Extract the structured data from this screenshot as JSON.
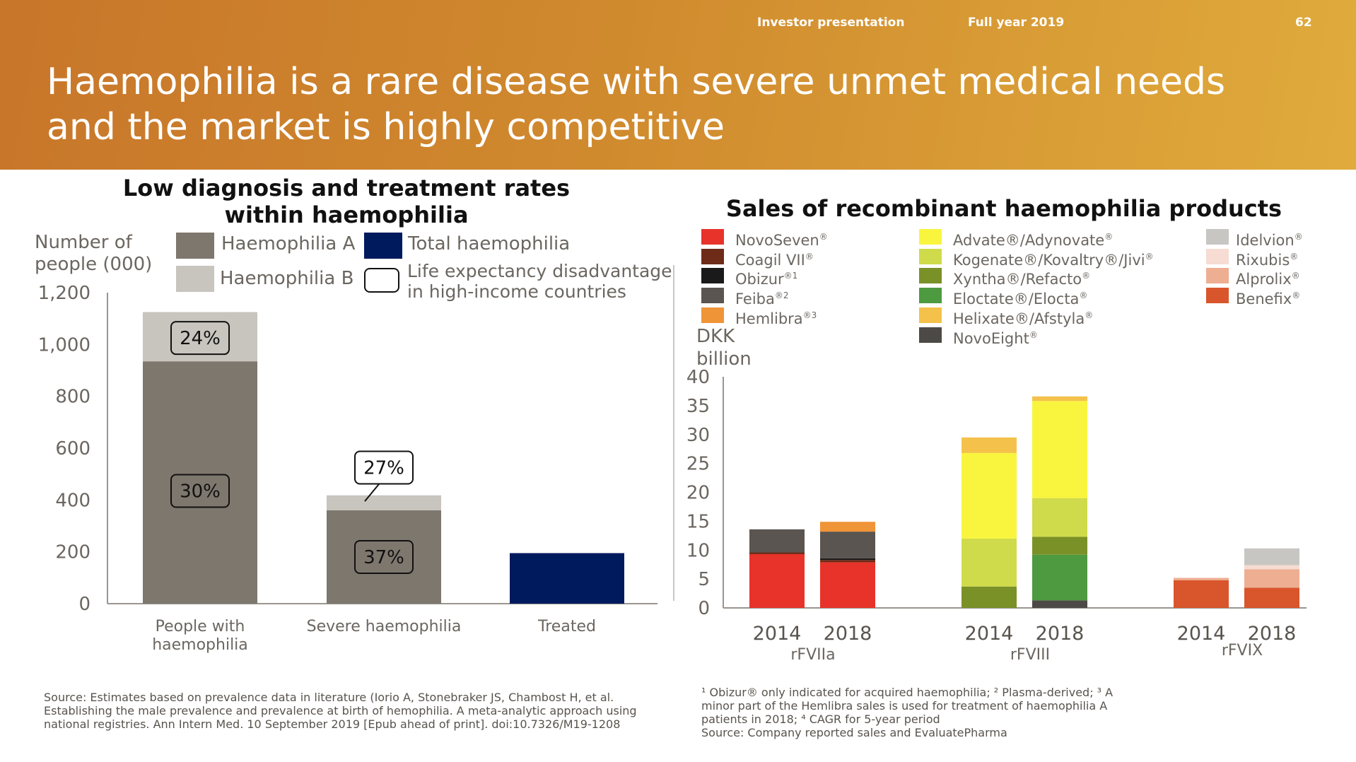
{
  "header": {
    "section": "Investor presentation",
    "period": "Full year 2019",
    "page": "62",
    "title_line1": "Haemophilia is a rare disease with severe unmet medical needs",
    "title_line2": "and the market is highly competitive"
  },
  "colors": {
    "haemophilia_a": "#7e776e",
    "haemophilia_b": "#c8c4be",
    "total_haemophilia": "#001a5e",
    "banner_start": "#c8762a",
    "banner_end": "#e0ab3c"
  },
  "left": {
    "title_line1": "Low diagnosis and treatment rates",
    "title_line2": "within haemophilia",
    "ylabel_line1": "Number of",
    "ylabel_line2": "people (000)",
    "legend": {
      "haemophilia_a": "Haemophilia A",
      "haemophilia_b": "Haemophilia B",
      "total": "Total haemophilia",
      "life_line1": "Life expectancy disadvantage",
      "life_line2": "in high-income countries"
    },
    "source_line1": "Source: Estimates based on prevalence data in literature (Iorio A, Stonebraker JS, Chambost H, et al.",
    "source_line2": "Establishing the male prevalence and prevalence at birth of hemophilia. A meta-analytic approach using",
    "source_line3": "national registries. Ann Intern Med. 10 September 2019 [Epub ahead of print]. doi:10.7326/M19-1208"
  },
  "right": {
    "title": "Sales of recombinant haemophilia products",
    "ylabel_line1": "DKK",
    "ylabel_line2": "billion",
    "legend_col1": [
      {
        "name": "NovoSeven",
        "sup": "®",
        "color": "#e8332a"
      },
      {
        "name": "Coagil VII",
        "sup": "®",
        "color": "#6e2b18"
      },
      {
        "name": "Obizur",
        "sup": "®1",
        "color": "#1a1a1a"
      },
      {
        "name": "Feiba",
        "sup": "®2",
        "color": "#5a5550"
      },
      {
        "name": "Hemlibra",
        "sup": "®3",
        "color": "#f09438"
      }
    ],
    "legend_col2": [
      {
        "name": "Advate®/Adynovate",
        "sup": "®",
        "color": "#f9f53e"
      },
      {
        "name": "Kogenate®/Kovaltry®/Jivi",
        "sup": "®",
        "color": "#cfdb4a"
      },
      {
        "name": "Xyntha®/Refacto",
        "sup": "®",
        "color": "#7a9128"
      },
      {
        "name": "Eloctate®/Elocta",
        "sup": "®",
        "color": "#4e9a40"
      },
      {
        "name": "Helixate®/Afstyla",
        "sup": "®",
        "color": "#f4c24a"
      },
      {
        "name": "NovoEight",
        "sup": "®",
        "color": "#4d4946"
      }
    ],
    "legend_col3": [
      {
        "name": "Idelvion",
        "sup": "®",
        "color": "#c8c6c3"
      },
      {
        "name": "Rixubis",
        "sup": "®",
        "color": "#f6dcd2"
      },
      {
        "name": "Alprolix",
        "sup": "®",
        "color": "#eeae92"
      },
      {
        "name": "Benefix",
        "sup": "®",
        "color": "#d9552b"
      }
    ],
    "footnote_line1": "¹ Obizur® only indicated for acquired haemophilia; ² Plasma-derived; ³ A",
    "footnote_line2": "minor part of the Hemlibra sales is used for treatment of haemophilia A",
    "footnote_line3": "patients in 2018; ⁴ CAGR for 5-year period",
    "footnote_line4": "Source: Company reported sales and EvaluatePharma"
  },
  "chart_data": [
    {
      "type": "bar",
      "title": "Low diagnosis and treatment rates within haemophilia",
      "ylabel": "Number of people (000)",
      "ylim": [
        0,
        1200
      ],
      "yticks": [
        "0",
        "200",
        "400",
        "600",
        "800",
        "1,000",
        "1,200"
      ],
      "categories": [
        "People with haemophilia",
        "Severe haemophilia",
        "Treated"
      ],
      "category_lines": [
        [
          "People with",
          "haemophilia"
        ],
        [
          "Severe haemophilia"
        ],
        [
          "Treated"
        ]
      ],
      "series": [
        {
          "name": "Haemophilia A",
          "values": [
            935,
            360,
            0
          ]
        },
        {
          "name": "Haemophilia B",
          "values": [
            190,
            58,
            0
          ]
        },
        {
          "name": "Total haemophilia",
          "values": [
            0,
            0,
            195
          ]
        }
      ],
      "annotations": [
        {
          "category": 0,
          "label": "24%",
          "at": 1025
        },
        {
          "category": 0,
          "label": "30%",
          "at": 435
        },
        {
          "category": 1,
          "label": "27%",
          "at": 525,
          "pointer_to": 395
        },
        {
          "category": 1,
          "label": "37%",
          "at": 180
        }
      ]
    },
    {
      "type": "bar",
      "title": "Sales of recombinant haemophilia products",
      "ylabel": "DKK billion",
      "ylim": [
        0,
        40
      ],
      "yticks": [
        "0",
        "5",
        "10",
        "15",
        "20",
        "25",
        "30",
        "35",
        "40"
      ],
      "groups": [
        {
          "name": "rFVIIa",
          "bars": [
            {
              "year": "2014",
              "stack": [
                {
                  "name": "NovoSeven",
                  "value": 9.3
                },
                {
                  "name": "Coagil VII",
                  "value": 0.3
                },
                {
                  "name": "Feiba",
                  "value": 4.0
                }
              ]
            },
            {
              "year": "2018",
              "stack": [
                {
                  "name": "NovoSeven",
                  "value": 7.9
                },
                {
                  "name": "Coagil VII",
                  "value": 0.4
                },
                {
                  "name": "Obizur",
                  "value": 0.3
                },
                {
                  "name": "Feiba",
                  "value": 4.6
                },
                {
                  "name": "Hemlibra",
                  "value": 1.7
                }
              ]
            }
          ]
        },
        {
          "name": "rFVIII",
          "bars": [
            {
              "year": "2014",
              "stack": [
                {
                  "name": "Xyntha®/Refacto",
                  "value": 3.7
                },
                {
                  "name": "Kogenate®/Kovaltry®/Jivi",
                  "value": 8.3
                },
                {
                  "name": "Advate®/Adynovate",
                  "value": 14.8
                },
                {
                  "name": "Helixate®/Afstyla",
                  "value": 2.7
                }
              ]
            },
            {
              "year": "2018",
              "stack": [
                {
                  "name": "NovoEight",
                  "value": 1.3
                },
                {
                  "name": "Eloctate®/Elocta",
                  "value": 7.9
                },
                {
                  "name": "Xyntha®/Refacto",
                  "value": 3.1
                },
                {
                  "name": "Kogenate®/Kovaltry®/Jivi",
                  "value": 6.7
                },
                {
                  "name": "Advate®/Adynovate",
                  "value": 16.8
                },
                {
                  "name": "Helixate®/Afstyla",
                  "value": 0.8
                }
              ]
            }
          ]
        },
        {
          "name": "rFVIX",
          "bars": [
            {
              "year": "2014",
              "stack": [
                {
                  "name": "Benefix",
                  "value": 4.8
                },
                {
                  "name": "Alprolix",
                  "value": 0.4
                }
              ]
            },
            {
              "year": "2018",
              "stack": [
                {
                  "name": "Benefix",
                  "value": 3.5
                },
                {
                  "name": "Alprolix",
                  "value": 3.2
                },
                {
                  "name": "Rixubis",
                  "value": 0.7
                },
                {
                  "name": "Idelvion",
                  "value": 2.9
                }
              ]
            }
          ]
        }
      ]
    }
  ]
}
